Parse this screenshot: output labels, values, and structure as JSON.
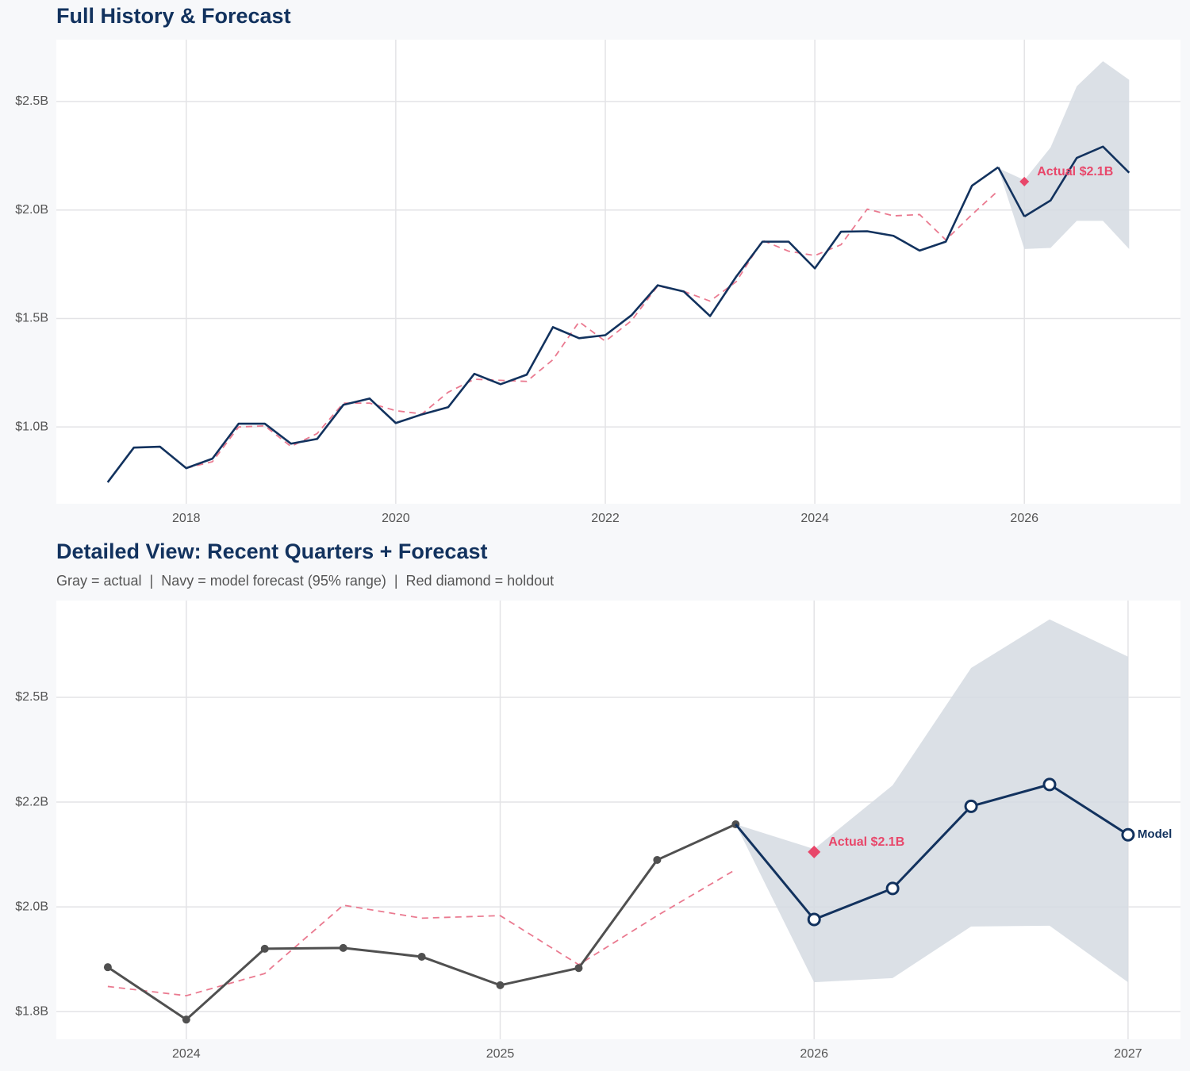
{
  "chart_data": [
    {
      "type": "line",
      "title": "Full History & Forecast",
      "xlim": [
        2016.76,
        2027.49
      ],
      "ylim": [
        0.646,
        2.785
      ],
      "xticks": [
        2018,
        2020,
        2022,
        2024,
        2026
      ],
      "yticks": [
        {
          "value": 1.0,
          "label": "$1.0B"
        },
        {
          "value": 1.5,
          "label": "$1.5B"
        },
        {
          "value": 2.0,
          "label": "$2.0B"
        },
        {
          "value": 2.5,
          "label": "$2.5B"
        }
      ],
      "grid": true,
      "band": {
        "color": "#d5dae2",
        "x": [
          2025.75,
          2026,
          2026.25,
          2026.5,
          2026.75,
          2027
        ],
        "lower": [
          2.193,
          1.82,
          1.825,
          1.95,
          1.95,
          1.82
        ],
        "upper": [
          2.193,
          2.138,
          2.288,
          2.57,
          2.686,
          2.6
        ]
      },
      "series": [
        {
          "color": "#ea7a90",
          "dash": true,
          "x": [
            2018,
            2018.25,
            2018.5,
            2018.75,
            2019,
            2019.25,
            2019.5,
            2019.75,
            2020,
            2020.25,
            2020.5,
            2020.75,
            2021,
            2021.25,
            2021.5,
            2021.75,
            2022,
            2022.25,
            2022.5,
            2022.75,
            2023,
            2023.25,
            2023.5,
            2023.75,
            2024,
            2024.25,
            2024.5,
            2024.75,
            2025,
            2025.25,
            2025.5,
            2025.75
          ],
          "values": [
            0.81,
            0.84,
            1.0,
            1.005,
            0.91,
            0.97,
            1.11,
            1.11,
            1.075,
            1.06,
            1.16,
            1.22,
            1.215,
            1.21,
            1.31,
            1.485,
            1.395,
            1.49,
            1.65,
            1.625,
            1.58,
            1.67,
            1.86,
            1.81,
            1.79,
            1.84,
            2.004,
            1.973,
            1.979,
            1.862,
            1.979,
            2.089
          ]
        },
        {
          "color": "#12325e",
          "x": [
            2017.25,
            2017.5,
            2017.75,
            2018,
            2018.25,
            2018.5,
            2018.75,
            2019,
            2019.25,
            2019.5,
            2019.75,
            2020,
            2020.25,
            2020.5,
            2020.75,
            2021,
            2021.25,
            2021.5,
            2021.75,
            2022,
            2022.25,
            2022.5,
            2022.75,
            2023,
            2023.25,
            2023.5,
            2023.75,
            2024,
            2024.25,
            2024.5,
            2024.75,
            2025,
            2025.25,
            2025.5,
            2025.75
          ],
          "values": [
            0.745,
            0.905,
            0.909,
            0.81,
            0.854,
            1.015,
            1.015,
            0.923,
            0.945,
            1.102,
            1.131,
            1.018,
            1.058,
            1.091,
            1.245,
            1.197,
            1.241,
            1.46,
            1.409,
            1.423,
            1.515,
            1.653,
            1.624,
            1.511,
            1.693,
            1.854,
            1.854,
            1.731,
            1.9,
            1.902,
            1.881,
            1.813,
            1.854,
            2.112,
            2.197
          ]
        },
        {
          "color": "#12325e",
          "connect_to_previous": true,
          "x": [
            2026,
            2026.25,
            2026.5,
            2026.75,
            2027
          ],
          "values": [
            1.97,
            2.044,
            2.24,
            2.292,
            2.172
          ]
        }
      ],
      "holdout": {
        "x": 2026,
        "value": 2.131,
        "label": "Actual $2.1B",
        "color": "#e8476a"
      }
    },
    {
      "type": "line",
      "title": "Detailed View: Recent Quarters + Forecast",
      "subtitle": "Gray = actual  |  Navy = model forecast (95% range)  |  Red diamond = holdout",
      "xlim": [
        2023.586,
        2027.167
      ],
      "ylim": [
        1.684,
        2.731
      ],
      "xticks": [
        2024,
        2025,
        2026,
        2027
      ],
      "yticks": [
        {
          "value": 1.75,
          "label": "$1.8B"
        },
        {
          "value": 2.0,
          "label": "$2.0B"
        },
        {
          "value": 2.25,
          "label": "$2.2B"
        },
        {
          "value": 2.5,
          "label": "$2.5B"
        }
      ],
      "grid": true,
      "band": {
        "color": "#d5dae2",
        "x": [
          2025.75,
          2026,
          2026.25,
          2026.5,
          2026.75,
          2027
        ],
        "lower": [
          2.197,
          1.82,
          1.83,
          1.953,
          1.955,
          1.82
        ],
        "upper": [
          2.197,
          2.138,
          2.29,
          2.57,
          2.686,
          2.597
        ]
      },
      "series": [
        {
          "color": "#ea7a90",
          "dash": true,
          "x": [
            2023.75,
            2024,
            2024.25,
            2024.5,
            2024.75,
            2025,
            2025.25,
            2025.5,
            2025.75
          ],
          "values": [
            1.81,
            1.788,
            1.841,
            2.004,
            1.973,
            1.979,
            1.862,
            1.979,
            2.089
          ]
        },
        {
          "color": "#505050",
          "markers": "filled",
          "x": [
            2023.75,
            2024,
            2024.25,
            2024.5,
            2024.75,
            2025,
            2025.25,
            2025.5,
            2025.75
          ],
          "values": [
            1.856,
            1.731,
            1.9,
            1.902,
            1.881,
            1.813,
            1.854,
            2.112,
            2.197
          ]
        },
        {
          "color": "#12325e",
          "markers": "open",
          "connect_to_previous": true,
          "label": "Model",
          "x": [
            2026,
            2026.25,
            2026.5,
            2026.75,
            2027
          ],
          "values": [
            1.97,
            2.044,
            2.24,
            2.292,
            2.172
          ]
        }
      ],
      "holdout": {
        "x": 2026,
        "value": 2.131,
        "label": "Actual $2.1B",
        "color": "#e8476a"
      }
    }
  ]
}
